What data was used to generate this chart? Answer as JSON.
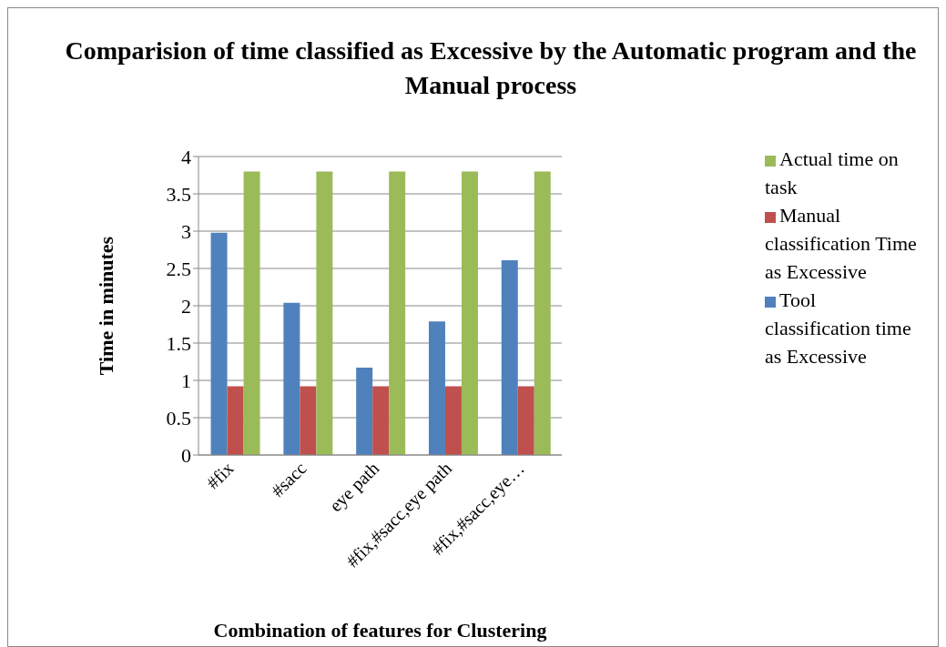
{
  "chart_data": {
    "type": "bar",
    "title": "Comparision of time classified as Excessive by the Automatic program and the Manual process",
    "xlabel": "Combination of features for Clustering",
    "ylabel": "Time in minutes",
    "categories": [
      "#fix",
      "#sacc",
      "eye path",
      "#fix,#sacc,eye path",
      "#fix,#sacc,eye…"
    ],
    "series": [
      {
        "name": "Tool classification time as Excessive",
        "color": "#4f81bd",
        "values": [
          2.98,
          2.04,
          1.17,
          1.79,
          2.61
        ]
      },
      {
        "name": "Manual classification Time as Excessive",
        "color": "#c0504d",
        "values": [
          0.92,
          0.92,
          0.92,
          0.92,
          0.92
        ]
      },
      {
        "name": "Actual time on task",
        "color": "#9bbb59",
        "values": [
          3.8,
          3.8,
          3.8,
          3.8,
          3.8
        ]
      }
    ],
    "ylim": [
      0,
      4
    ],
    "yticks": [
      0,
      0.5,
      1,
      1.5,
      2,
      2.5,
      3,
      3.5,
      4
    ],
    "grid": "y",
    "legend": "right"
  }
}
